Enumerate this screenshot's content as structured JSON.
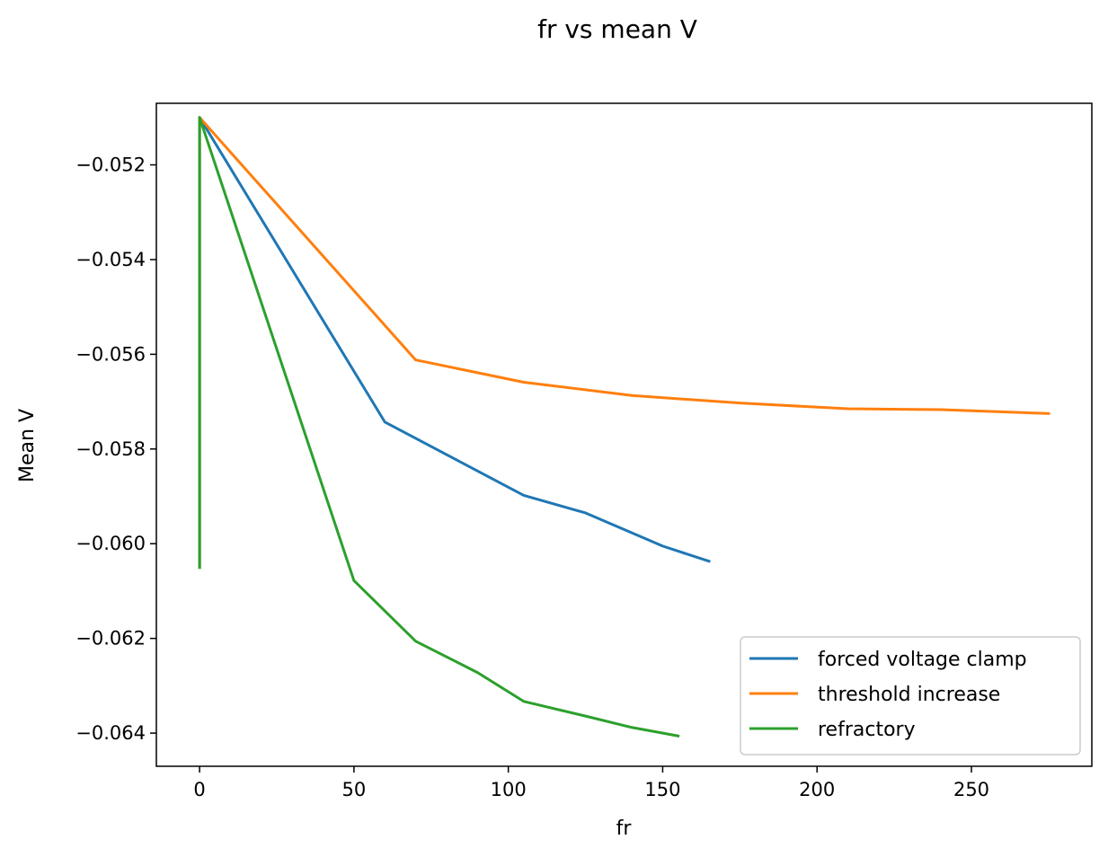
{
  "chart_data": {
    "type": "line",
    "title": "fr vs mean V",
    "xlabel": "fr",
    "ylabel": "Mean V",
    "xlim": [
      -14,
      289
    ],
    "ylim": [
      -0.0647,
      -0.0507
    ],
    "xticks": [
      0,
      50,
      100,
      150,
      200,
      250
    ],
    "xtick_labels": [
      "0",
      "50",
      "100",
      "150",
      "200",
      "250"
    ],
    "yticks": [
      -0.052,
      -0.054,
      -0.056,
      -0.058,
      -0.06,
      -0.062,
      -0.064
    ],
    "ytick_labels": [
      "−0.052",
      "−0.054",
      "−0.056",
      "−0.058",
      "−0.060",
      "−0.062",
      "−0.064"
    ],
    "grid": false,
    "legend_position": "lower-right",
    "series": [
      {
        "name": "forced voltage clamp",
        "color": "#1f77b4",
        "x": [
          0,
          0,
          60,
          105,
          125,
          150,
          165
        ],
        "y": [
          -0.0605,
          -0.051,
          -0.05743,
          -0.05898,
          -0.05935,
          -0.06005,
          -0.06037
        ]
      },
      {
        "name": "threshold increase",
        "color": "#ff7f0e",
        "x": [
          0,
          0,
          70,
          105,
          140,
          175,
          210,
          240,
          275
        ],
        "y": [
          -0.0605,
          -0.051,
          -0.05612,
          -0.05659,
          -0.05687,
          -0.05703,
          -0.05715,
          -0.05717,
          -0.05725
        ]
      },
      {
        "name": "refractory",
        "color": "#2ca02c",
        "x": [
          0,
          0,
          50,
          70,
          90,
          105,
          125,
          140,
          155
        ],
        "y": [
          -0.0605,
          -0.051,
          -0.06078,
          -0.06206,
          -0.06272,
          -0.06333,
          -0.06364,
          -0.06388,
          -0.06406
        ]
      }
    ]
  }
}
